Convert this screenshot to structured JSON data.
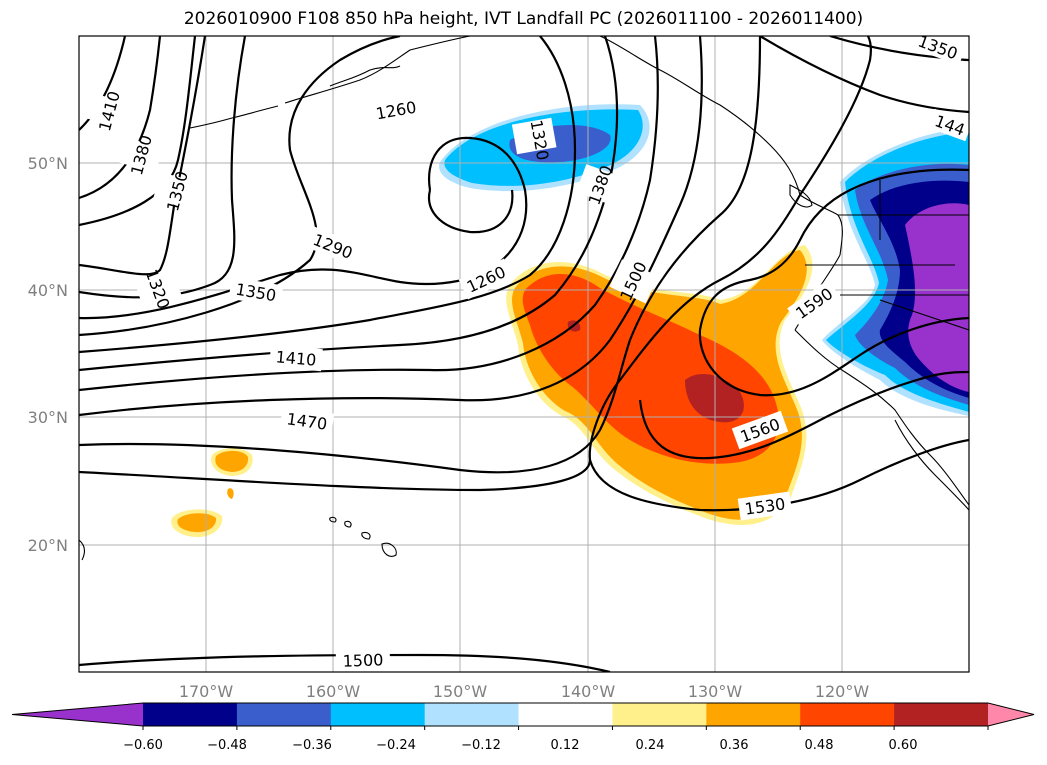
{
  "title": "2026010900 F108 850 hPa height, IVT Landfall PC (2026011100 - 2026011400)",
  "map": {
    "lon_range": [
      -180,
      -110
    ],
    "lat_range": [
      10,
      60
    ],
    "lat_ticks": [
      {
        "value": 20,
        "label": "20°N"
      },
      {
        "value": 30,
        "label": "30°N"
      },
      {
        "value": 40,
        "label": "40°N"
      },
      {
        "value": 50,
        "label": "50°N"
      }
    ],
    "lon_ticks": [
      {
        "value": -170,
        "label": "170°W"
      },
      {
        "value": -160,
        "label": "160°W"
      },
      {
        "value": -150,
        "label": "150°W"
      },
      {
        "value": -140,
        "label": "140°W"
      },
      {
        "value": -130,
        "label": "130°W"
      },
      {
        "value": -120,
        "label": "120°W"
      }
    ],
    "gridlines": true
  },
  "height_contours": {
    "field": "850 hPa height",
    "labels": [
      "1410",
      "1380",
      "1350",
      "1320",
      "1260",
      "1320",
      "1290",
      "1260",
      "1380",
      "1500",
      "1350",
      "1410",
      "1470",
      "1560",
      "1590",
      "1530",
      "1500",
      "1350",
      "144"
    ]
  },
  "colorbar": {
    "field": "IVT Landfall PC",
    "extend": "both",
    "tick_labels": [
      "−0.60",
      "−0.48",
      "−0.36",
      "−0.24",
      "−0.12",
      "0.12",
      "0.24",
      "0.36",
      "0.48",
      "0.60"
    ],
    "colors": [
      "#9932cc",
      "#00008b",
      "#3a5fcd",
      "#00bfff",
      "#b0e2ff",
      "#ffffff",
      "#fff08c",
      "#ffa500",
      "#ff4500",
      "#b22222",
      "#ff88aa"
    ]
  }
}
